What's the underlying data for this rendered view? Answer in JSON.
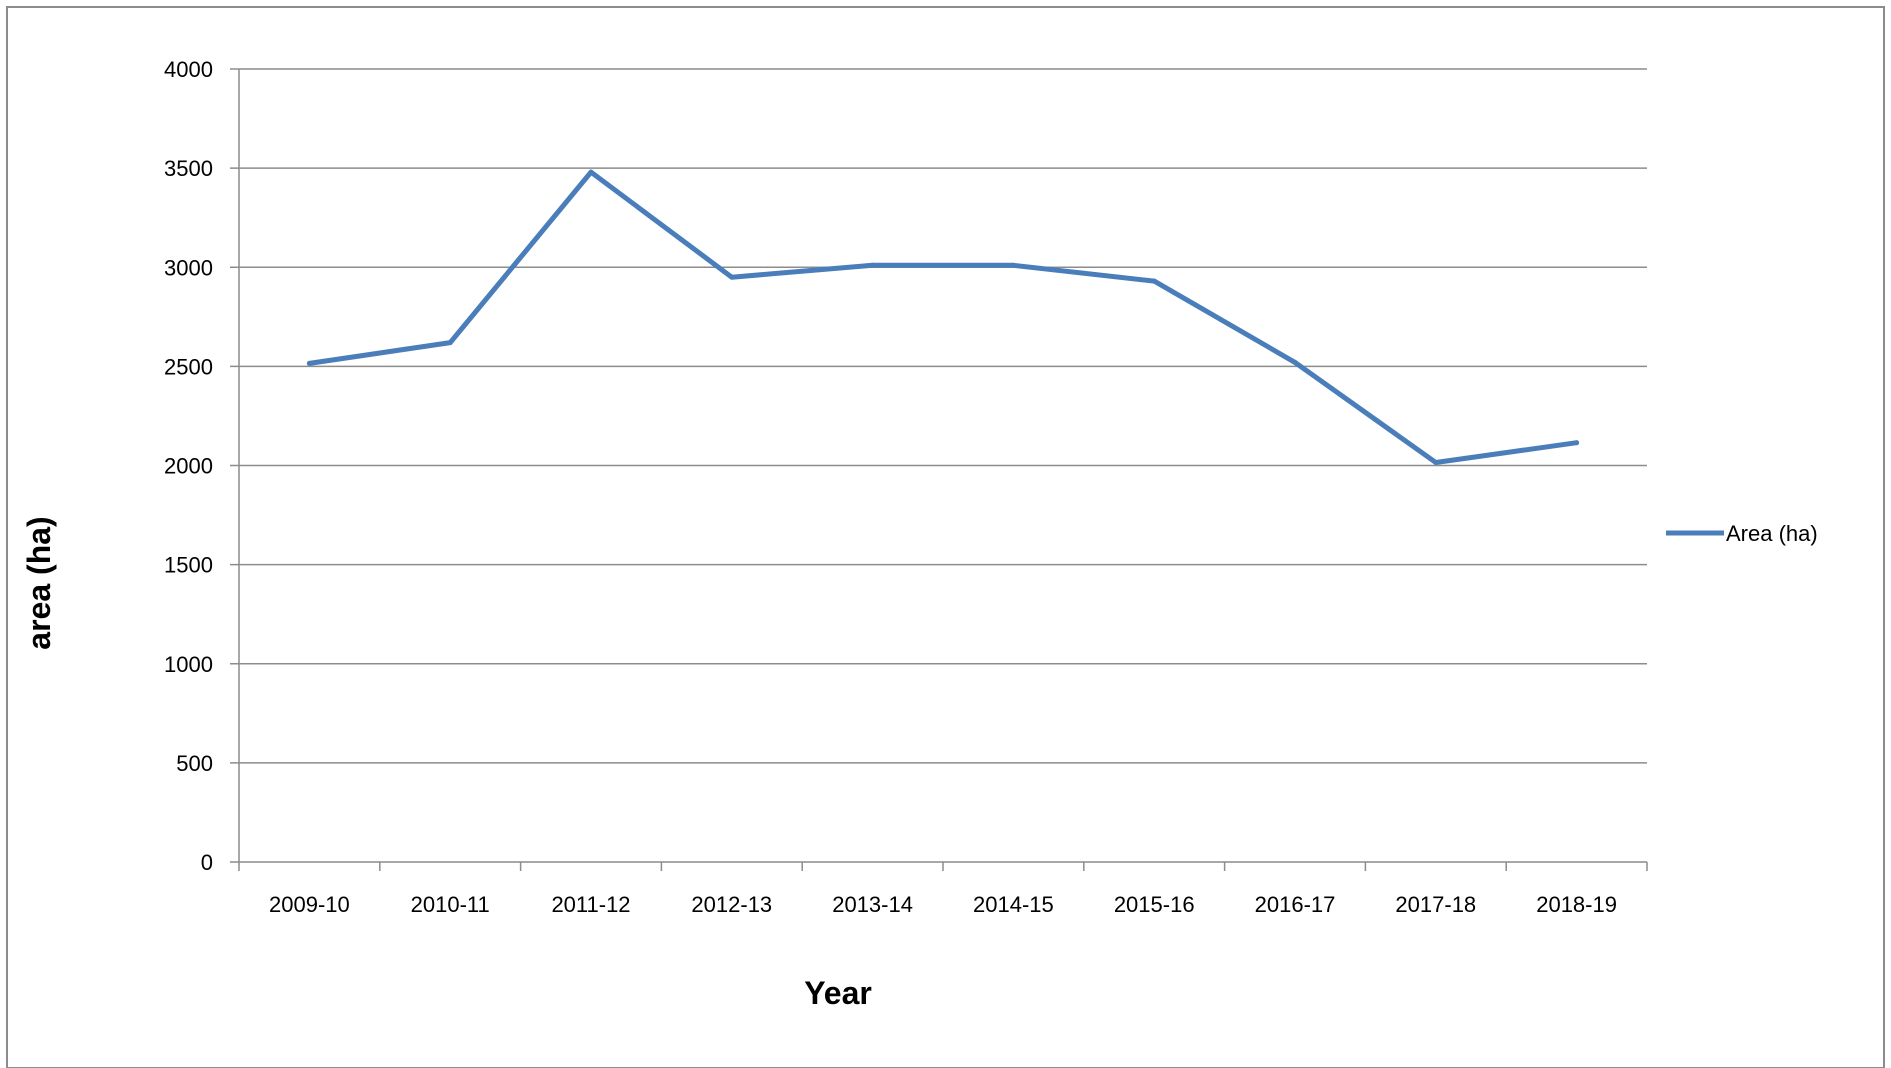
{
  "chart_data": {
    "type": "line",
    "title": "",
    "xlabel": "Year",
    "ylabel": "area (ha)",
    "categories": [
      "2009-10",
      "2010-11",
      "2011-12",
      "2012-13",
      "2013-14",
      "2014-15",
      "2015-16",
      "2016-17",
      "2017-18",
      "2018-19"
    ],
    "series": [
      {
        "name": "Area (ha)",
        "values": [
          2515,
          2620,
          3480,
          2950,
          3010,
          3010,
          2930,
          2520,
          2015,
          2115
        ]
      }
    ],
    "ylim": [
      0,
      4000
    ],
    "yticks": [
      0,
      500,
      1000,
      1500,
      2000,
      2500,
      3000,
      3500,
      4000
    ],
    "grid": true,
    "legend_position": "right",
    "colors": {
      "series": "#4a7ebb",
      "grid": "#8c8c8c",
      "axis": "#8c8c8c",
      "frame": "#8c8c8c"
    }
  }
}
